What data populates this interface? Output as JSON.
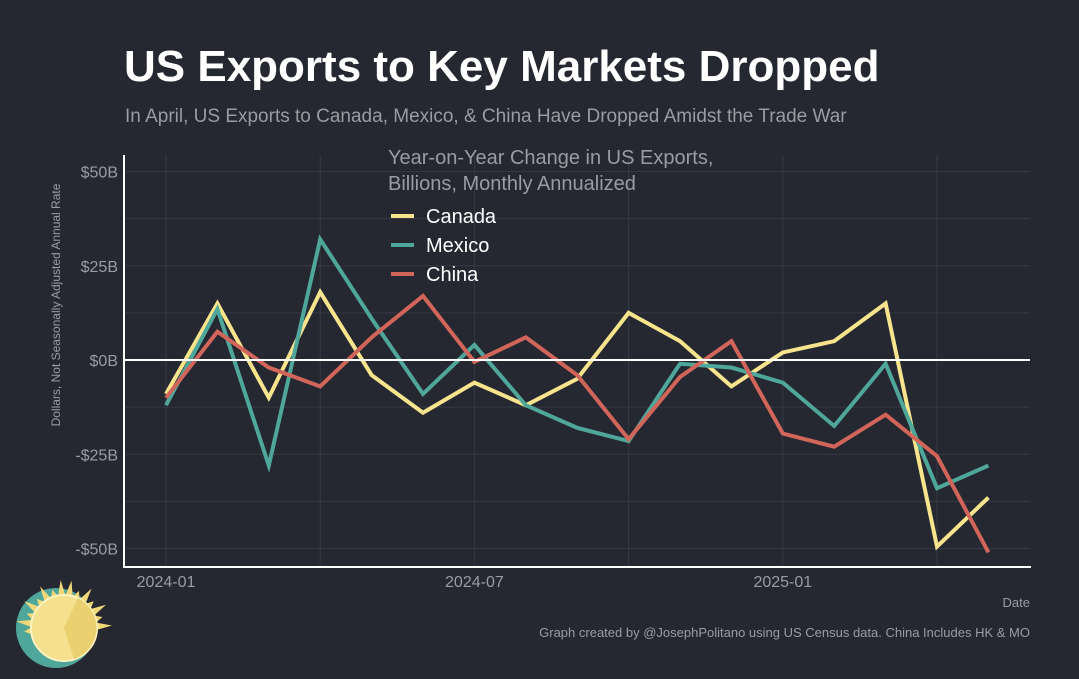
{
  "title": "US Exports to Key Markets Dropped",
  "subtitle": "In April, US Exports to Canada, Mexico, & China Have Dropped Amidst the Trade War",
  "caption": "Graph created by @JosephPolitano using US Census data. China Includes HK & MO",
  "chart_data": {
    "type": "line",
    "legend_title": [
      "Year-on-Year Change in US Exports,",
      "Billions, Monthly Annualized"
    ],
    "xlabel": "Date",
    "ylabel": "Dollars, Not Seasonally Adjusted Annual Rate",
    "x": [
      "2024-01",
      "2024-02",
      "2024-03",
      "2024-04",
      "2024-05",
      "2024-06",
      "2024-07",
      "2024-08",
      "2024-09",
      "2024-10",
      "2024-11",
      "2024-12",
      "2025-01",
      "2025-02",
      "2025-03",
      "2025-04",
      "2025-05"
    ],
    "x_ticks": [
      "2024-01",
      "2024-07",
      "2025-01"
    ],
    "y_ticks": [
      50,
      25,
      0,
      -25,
      -50
    ],
    "y_tick_labels": [
      "$50B",
      "$25B",
      "$0B",
      "-$25B",
      "-$50B"
    ],
    "ylim": [
      -55,
      50
    ],
    "grid": true,
    "legend_position": "top-center",
    "series": [
      {
        "name": "Canada",
        "color": "#f7e48c",
        "values": [
          -9,
          15,
          -10,
          18,
          -4,
          -14,
          -6,
          -12,
          -5,
          12.5,
          5,
          -7,
          2,
          5,
          15,
          -49.5,
          -36.5
        ]
      },
      {
        "name": "Mexico",
        "color": "#4fa79c",
        "values": [
          -12,
          13.5,
          -28,
          32,
          11,
          -9,
          4,
          -12,
          -18,
          -21.5,
          -1,
          -2,
          -6,
          -17.5,
          -1,
          -34,
          -28
        ]
      },
      {
        "name": "China",
        "color": "#d2655a",
        "values": [
          -10,
          7.5,
          -2,
          -7,
          6,
          17,
          -0.5,
          6,
          -4,
          -21,
          -4.5,
          5,
          -19.5,
          -23,
          -14.5,
          -25.5,
          -51
        ]
      }
    ]
  }
}
